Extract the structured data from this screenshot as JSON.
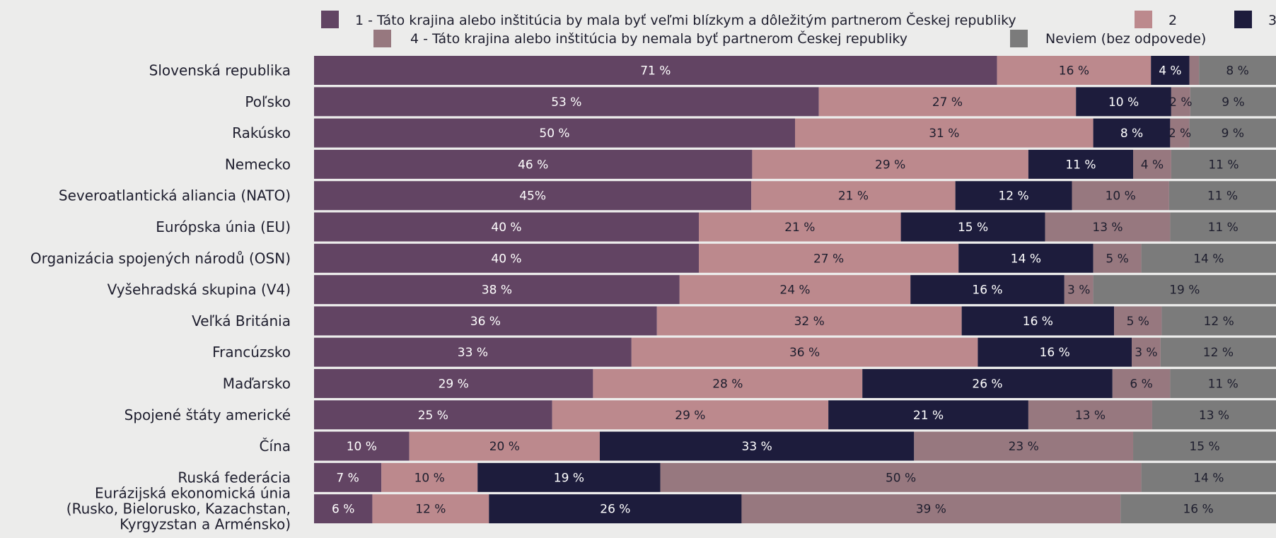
{
  "chart_data": {
    "type": "bar",
    "orientation": "horizontal",
    "stacked": true,
    "normalized_percent": true,
    "legend_position": "top",
    "grid": false,
    "xlim": [
      0,
      100
    ],
    "categories": [
      [
        "Slovenská republika"
      ],
      [
        "Poľsko"
      ],
      [
        "Rakúsko"
      ],
      [
        "Nemecko"
      ],
      [
        "Severoatlantická aliancia (NATO)"
      ],
      [
        "Európska únia (EU)"
      ],
      [
        "Organizácia spojených národů (OSN)"
      ],
      [
        "Vyšehradská skupina (V4)"
      ],
      [
        "Veľká Británia"
      ],
      [
        "Francúzsko"
      ],
      [
        "Maďarsko"
      ],
      [
        "Spojené štáty americké"
      ],
      [
        "Čína"
      ],
      [
        "Ruská federácia"
      ],
      [
        "Eurázijská ekonomická únia",
        "(Rusko, Bielorusko, Kazachstan,",
        "Kyrgyzstan a Arménsko)"
      ]
    ],
    "series": [
      {
        "name": "1 - Táto krajina alebo inštitúcia by mala byť veľmi blízkym a dôležitým partnerom Českej republiky",
        "color": "#624463",
        "values": [
          71,
          53,
          50,
          46,
          45,
          40,
          40,
          38,
          36,
          33,
          29,
          25,
          10,
          7,
          6
        ],
        "labels": [
          "71 %",
          "53 %",
          "50 %",
          "46 %",
          "45%",
          "40 %",
          "40 %",
          "38 %",
          "36 %",
          "33 %",
          "29 %",
          "25 %",
          "10 %",
          "7 %",
          "6 %"
        ]
      },
      {
        "name": "2",
        "color": "#bc898d",
        "values": [
          16,
          27,
          31,
          29,
          21,
          21,
          27,
          24,
          32,
          36,
          28,
          29,
          20,
          10,
          12
        ],
        "labels": [
          "16 %",
          "27 %",
          "31 %",
          "29 %",
          "21 %",
          "21 %",
          "27 %",
          "24 %",
          "32 %",
          "36 %",
          "28 %",
          "29 %",
          "20 %",
          "10 %",
          "12 %"
        ]
      },
      {
        "name": "3",
        "color": "#1d1c3c",
        "values": [
          4,
          10,
          8,
          11,
          12,
          15,
          14,
          16,
          16,
          16,
          26,
          21,
          33,
          19,
          26
        ],
        "labels": [
          "4 %",
          "10 %",
          "8 %",
          "11 %",
          "12 %",
          "15 %",
          "14 %",
          "16 %",
          "16 %",
          "16 %",
          "26 %",
          "21 %",
          "33 %",
          "19 %",
          "26 %"
        ]
      },
      {
        "name": "4 - Táto krajina alebo inštitúcia by nemala byť partnerom Českej republiky",
        "color": "#97787f",
        "values": [
          1,
          2,
          2,
          4,
          10,
          13,
          5,
          3,
          5,
          3,
          6,
          13,
          23,
          50,
          39
        ],
        "labels": [
          "",
          "2 %",
          "2 %",
          "4 %",
          "10 %",
          "13 %",
          "5 %",
          "3 %",
          "5 %",
          "3 %",
          "6 %",
          "13 %",
          "23 %",
          "50 %",
          "39 %"
        ]
      },
      {
        "name": "Neviem (bez odpovede)",
        "color": "#7b7b7b",
        "values": [
          8,
          9,
          9,
          11,
          11,
          11,
          14,
          19,
          12,
          12,
          11,
          13,
          15,
          14,
          16
        ],
        "labels": [
          "8 %",
          "9 %",
          "9 %",
          "11 %",
          "11 %",
          "11 %",
          "14 %",
          "19 %",
          "12 %",
          "12 %",
          "11 %",
          "13 %",
          "15 %",
          "14 %",
          "16 %"
        ]
      }
    ]
  }
}
